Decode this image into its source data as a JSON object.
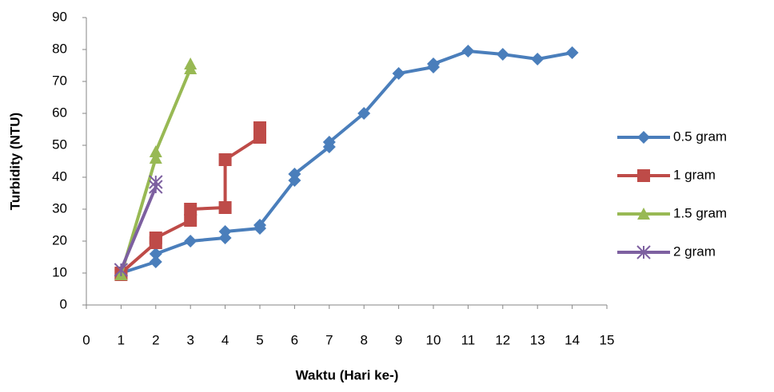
{
  "chart_data": {
    "type": "line",
    "xlabel": "Waktu (Hari ke-)",
    "ylabel": "Turbidity (NTU)",
    "xlim": [
      0,
      15
    ],
    "xticks": [
      0,
      1,
      2,
      3,
      4,
      5,
      6,
      7,
      8,
      9,
      10,
      11,
      12,
      13,
      14,
      15
    ],
    "ylim": [
      0,
      90
    ],
    "yticks": [
      0,
      10,
      20,
      30,
      40,
      50,
      60,
      70,
      80,
      90
    ],
    "grid": false,
    "legend": "right",
    "series": [
      {
        "name": "0.5 gram",
        "color": "#4a7ebb",
        "marker": "diamond",
        "x": [
          1,
          2,
          2,
          3,
          4,
          4,
          5,
          5,
          6,
          6,
          7,
          7,
          8,
          9,
          10,
          10,
          11,
          12,
          13,
          14
        ],
        "values": [
          10,
          13.5,
          16,
          20,
          21,
          23,
          24,
          25,
          39,
          41,
          49.5,
          51,
          60,
          72.5,
          74.5,
          75.5,
          79.5,
          78.5,
          77,
          79
        ]
      },
      {
        "name": "1 gram",
        "color": "#be4b48",
        "marker": "square",
        "x": [
          1,
          1,
          2,
          2,
          3,
          3,
          4,
          4,
          5,
          5
        ],
        "values": [
          9.5,
          10,
          19.5,
          21,
          26.5,
          30,
          30.5,
          45.5,
          52.5,
          55.5
        ]
      },
      {
        "name": "1.5 gram",
        "color": "#98b954",
        "marker": "triangle",
        "x": [
          1,
          2,
          2,
          3,
          3
        ],
        "values": [
          9.5,
          46,
          48,
          74,
          75.5
        ]
      },
      {
        "name": "2 gram",
        "color": "#7d60a0",
        "marker": "star",
        "x": [
          1,
          2,
          2
        ],
        "values": [
          11,
          37,
          38.5
        ]
      }
    ]
  }
}
